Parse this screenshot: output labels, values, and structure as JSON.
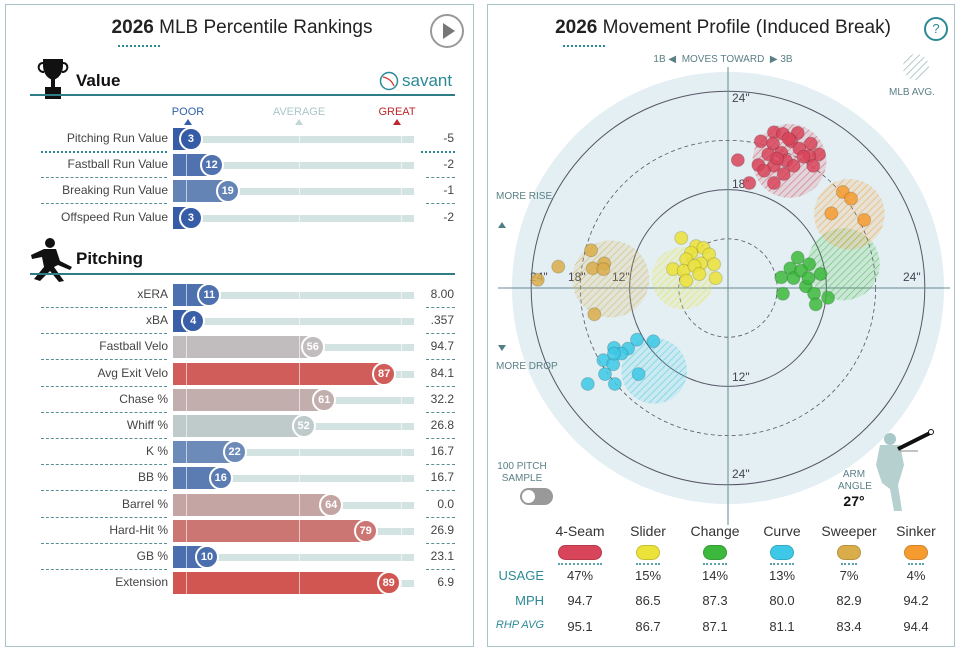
{
  "left": {
    "title_year": "2026",
    "title_rest": " MLB Percentile Rankings",
    "play_icon": "play-icon",
    "value_section": {
      "title": "Value",
      "icon": "trophy-icon",
      "brand": "savant"
    },
    "pitching_section": {
      "title": "Pitching",
      "icon": "pitcher-icon"
    },
    "scale": {
      "poor": "POOR",
      "average": "AVERAGE",
      "great": "GREAT"
    },
    "colors": {
      "poor": "#3060a8",
      "average": "#a9c6c6",
      "great": "#c0262d"
    },
    "value_rows": [
      {
        "label": "Pitching Run Value",
        "percentile": 3,
        "value": "-5"
      },
      {
        "label": "Fastball Run Value",
        "percentile": 12,
        "value": "-2"
      },
      {
        "label": "Breaking Run Value",
        "percentile": 19,
        "value": "-1"
      },
      {
        "label": "Offspeed Run Value",
        "percentile": 3,
        "value": "-2"
      }
    ],
    "pitching_rows": [
      {
        "label": "xERA",
        "percentile": 11,
        "value": "8.00"
      },
      {
        "label": "xBA",
        "percentile": 4,
        "value": ".357"
      },
      {
        "label": "Fastball Velo",
        "percentile": 56,
        "value": "94.7"
      },
      {
        "label": "Avg Exit Velo",
        "percentile": 87,
        "value": "84.1"
      },
      {
        "label": "Chase %",
        "percentile": 61,
        "value": "32.2"
      },
      {
        "label": "Whiff %",
        "percentile": 52,
        "value": "26.8"
      },
      {
        "label": "K %",
        "percentile": 22,
        "value": "16.7"
      },
      {
        "label": "BB %",
        "percentile": 16,
        "value": "16.7"
      },
      {
        "label": "Barrel %",
        "percentile": 64,
        "value": "0.0"
      },
      {
        "label": "Hard-Hit %",
        "percentile": 79,
        "value": "26.9"
      },
      {
        "label": "GB %",
        "percentile": 10,
        "value": "23.1"
      },
      {
        "label": "Extension",
        "percentile": 89,
        "value": "6.9"
      }
    ]
  },
  "right": {
    "title_year": "2026",
    "title_rest": " Movement Profile (Induced Break)",
    "help_icon": "question-icon",
    "help_label": "?",
    "direction": {
      "left": "1B",
      "middle": "MOVES TOWARD",
      "right": "3B"
    },
    "mlb_avg_label": "MLB AVG.",
    "more_rise": "MORE RISE",
    "more_drop": "MORE DROP",
    "sample_label": "100 PITCH SAMPLE",
    "sample_toggle_on": false,
    "arm_angle_label": "ARM ANGLE",
    "arm_angle_value": "27°",
    "row_labels": {
      "usage": "USAGE",
      "mph": "MPH",
      "rhp_avg": "RHP AVG"
    },
    "pitches": [
      {
        "name": "4-Seam",
        "color": "#d8445a",
        "usage": "47%",
        "mph": "94.7",
        "rhp_avg": "95.1"
      },
      {
        "name": "Slider",
        "color": "#ebe23a",
        "usage": "15%",
        "mph": "86.5",
        "rhp_avg": "86.7"
      },
      {
        "name": "Change",
        "color": "#3cb83c",
        "usage": "14%",
        "mph": "87.3",
        "rhp_avg": "87.1"
      },
      {
        "name": "Curve",
        "color": "#3cc8e6",
        "usage": "13%",
        "mph": "80.0",
        "rhp_avg": "81.1"
      },
      {
        "name": "Sweeper",
        "color": "#d9ad4a",
        "usage": "7%",
        "mph": "82.9",
        "rhp_avg": "83.4"
      },
      {
        "name": "Sinker",
        "color": "#f59b30",
        "usage": "4%",
        "mph": "94.2",
        "rhp_avg": "94.4"
      }
    ],
    "chart_data": {
      "type": "scatter",
      "title": "2026 Movement Profile (Induced Break)",
      "xlabel": "1B ◀ MOVES TOWARD ▶ 3B",
      "units": "inches",
      "ring_labels": [
        "12\"",
        "18\"",
        "24\"",
        "24\"",
        "12\"",
        "24\"",
        "12\"",
        "24\""
      ],
      "rings": [
        6,
        12,
        18,
        24
      ],
      "series": [
        {
          "name": "4-Seam",
          "mlb_avg": {
            "x": 7.5,
            "z": 15.5,
            "r": 4.5
          },
          "points": [
            [
              1.2,
              15.6
            ],
            [
              2.6,
              12.8
            ],
            [
              3.7,
              15.0
            ],
            [
              5.6,
              19.0
            ],
            [
              6.7,
              18.8
            ],
            [
              8.5,
              18.9
            ],
            [
              4.0,
              17.9
            ],
            [
              5.5,
              17.6
            ],
            [
              7.7,
              17.9
            ],
            [
              10.1,
              17.6
            ],
            [
              11.1,
              16.3
            ],
            [
              4.9,
              16.3
            ],
            [
              6.5,
              16.5
            ],
            [
              8.7,
              17.0
            ],
            [
              9.9,
              16.1
            ],
            [
              5.6,
              14.9
            ],
            [
              7.1,
              15.5
            ],
            [
              8.0,
              14.9
            ],
            [
              10.4,
              14.9
            ],
            [
              5.6,
              12.8
            ],
            [
              6.8,
              13.9
            ],
            [
              4.4,
              14.3
            ],
            [
              7.4,
              18.2
            ],
            [
              9.2,
              16.0
            ],
            [
              6.0,
              15.8
            ]
          ]
        },
        {
          "name": "Slider",
          "mlb_avg": {
            "x": -5.5,
            "z": 1.2,
            "r": 3.8
          },
          "points": [
            [
              -5.7,
              6.1
            ],
            [
              -3.9,
              5.1
            ],
            [
              -3.0,
              4.9
            ],
            [
              -4.5,
              4.3
            ],
            [
              -2.3,
              4.1
            ],
            [
              -5.1,
              3.5
            ],
            [
              -3.3,
              3.0
            ],
            [
              -1.7,
              2.9
            ],
            [
              -6.7,
              2.3
            ],
            [
              -5.4,
              2.1
            ],
            [
              -4.1,
              2.7
            ],
            [
              -3.5,
              1.7
            ],
            [
              -1.5,
              1.2
            ],
            [
              -5.1,
              0.9
            ]
          ]
        },
        {
          "name": "Change",
          "mlb_avg": {
            "x": 14.1,
            "z": 2.9,
            "r": 4.4
          },
          "points": [
            [
              8.5,
              3.7
            ],
            [
              7.6,
              2.4
            ],
            [
              6.5,
              1.3
            ],
            [
              8.0,
              1.2
            ],
            [
              9.9,
              2.9
            ],
            [
              11.3,
              1.7
            ],
            [
              9.5,
              0.2
            ],
            [
              6.7,
              -0.7
            ],
            [
              10.5,
              -0.7
            ],
            [
              10.7,
              -2.0
            ],
            [
              12.2,
              -1.2
            ],
            [
              8.9,
              2.1
            ],
            [
              9.8,
              1.2
            ]
          ]
        },
        {
          "name": "Curve",
          "mlb_avg": {
            "x": -9.0,
            "z": -10.1,
            "r": 4.0
          },
          "points": [
            [
              -9.1,
              -6.5
            ],
            [
              -11.1,
              -6.3
            ],
            [
              -12.2,
              -7.4
            ],
            [
              -13.9,
              -7.3
            ],
            [
              -15.2,
              -8.8
            ],
            [
              -14.0,
              -9.3
            ],
            [
              -13.0,
              -8.0
            ],
            [
              -15.0,
              -10.5
            ],
            [
              -10.9,
              -10.5
            ],
            [
              -17.1,
              -11.7
            ],
            [
              -13.8,
              -11.7
            ],
            [
              -13.9,
              -8.0
            ]
          ]
        },
        {
          "name": "Sweeper",
          "mlb_avg": {
            "x": -14.3,
            "z": 1.1,
            "r": 4.7
          },
          "points": [
            [
              -16.7,
              4.6
            ],
            [
              -15.1,
              3.0
            ],
            [
              -16.5,
              2.4
            ],
            [
              -15.2,
              2.3
            ],
            [
              -20.7,
              2.6
            ],
            [
              -23.2,
              1.0
            ],
            [
              -16.3,
              -3.2
            ]
          ]
        },
        {
          "name": "Sinker",
          "mlb_avg": {
            "x": 14.8,
            "z": 9.0,
            "r": 4.3
          },
          "points": [
            [
              14.0,
              11.7
            ],
            [
              15.0,
              10.9
            ],
            [
              12.6,
              9.1
            ],
            [
              16.6,
              8.3
            ]
          ]
        }
      ]
    }
  }
}
